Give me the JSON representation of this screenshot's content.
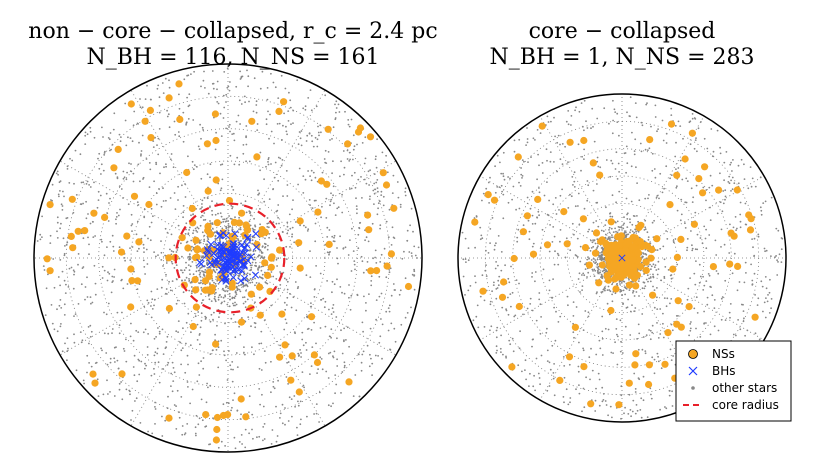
{
  "chart_data": [
    {
      "type": "scatter",
      "projection": "polar",
      "title_line1": "non − core − collapsed, r_c = 2.4 pc",
      "title_line2": "N_BH = 116, N_NS = 161",
      "core_radius_fraction": 0.28,
      "grid": "dotted",
      "series": [
        {
          "name": "NSs",
          "count": 161,
          "color": "#f5a623",
          "marker": "circle"
        },
        {
          "name": "BHs",
          "count": 116,
          "color": "#1f3cff",
          "marker": "x"
        },
        {
          "name": "other stars",
          "color": "#888888",
          "marker": "dot"
        },
        {
          "name": "core radius",
          "color": "#e8202a",
          "marker": "dashed-circle"
        }
      ]
    },
    {
      "type": "scatter",
      "projection": "polar",
      "title_line1": "core − collapsed",
      "title_line2": "N_BH = 1, N_NS = 283",
      "grid": "dotted",
      "series": [
        {
          "name": "NSs",
          "count": 283,
          "color": "#f5a623",
          "marker": "circle"
        },
        {
          "name": "BHs",
          "count": 1,
          "color": "#1f3cff",
          "marker": "x"
        },
        {
          "name": "other stars",
          "color": "#888888",
          "marker": "dot"
        }
      ],
      "legend": {
        "position": "bottom-right",
        "entries": [
          "NSs",
          "BHs",
          "other stars",
          "core radius"
        ]
      }
    }
  ]
}
